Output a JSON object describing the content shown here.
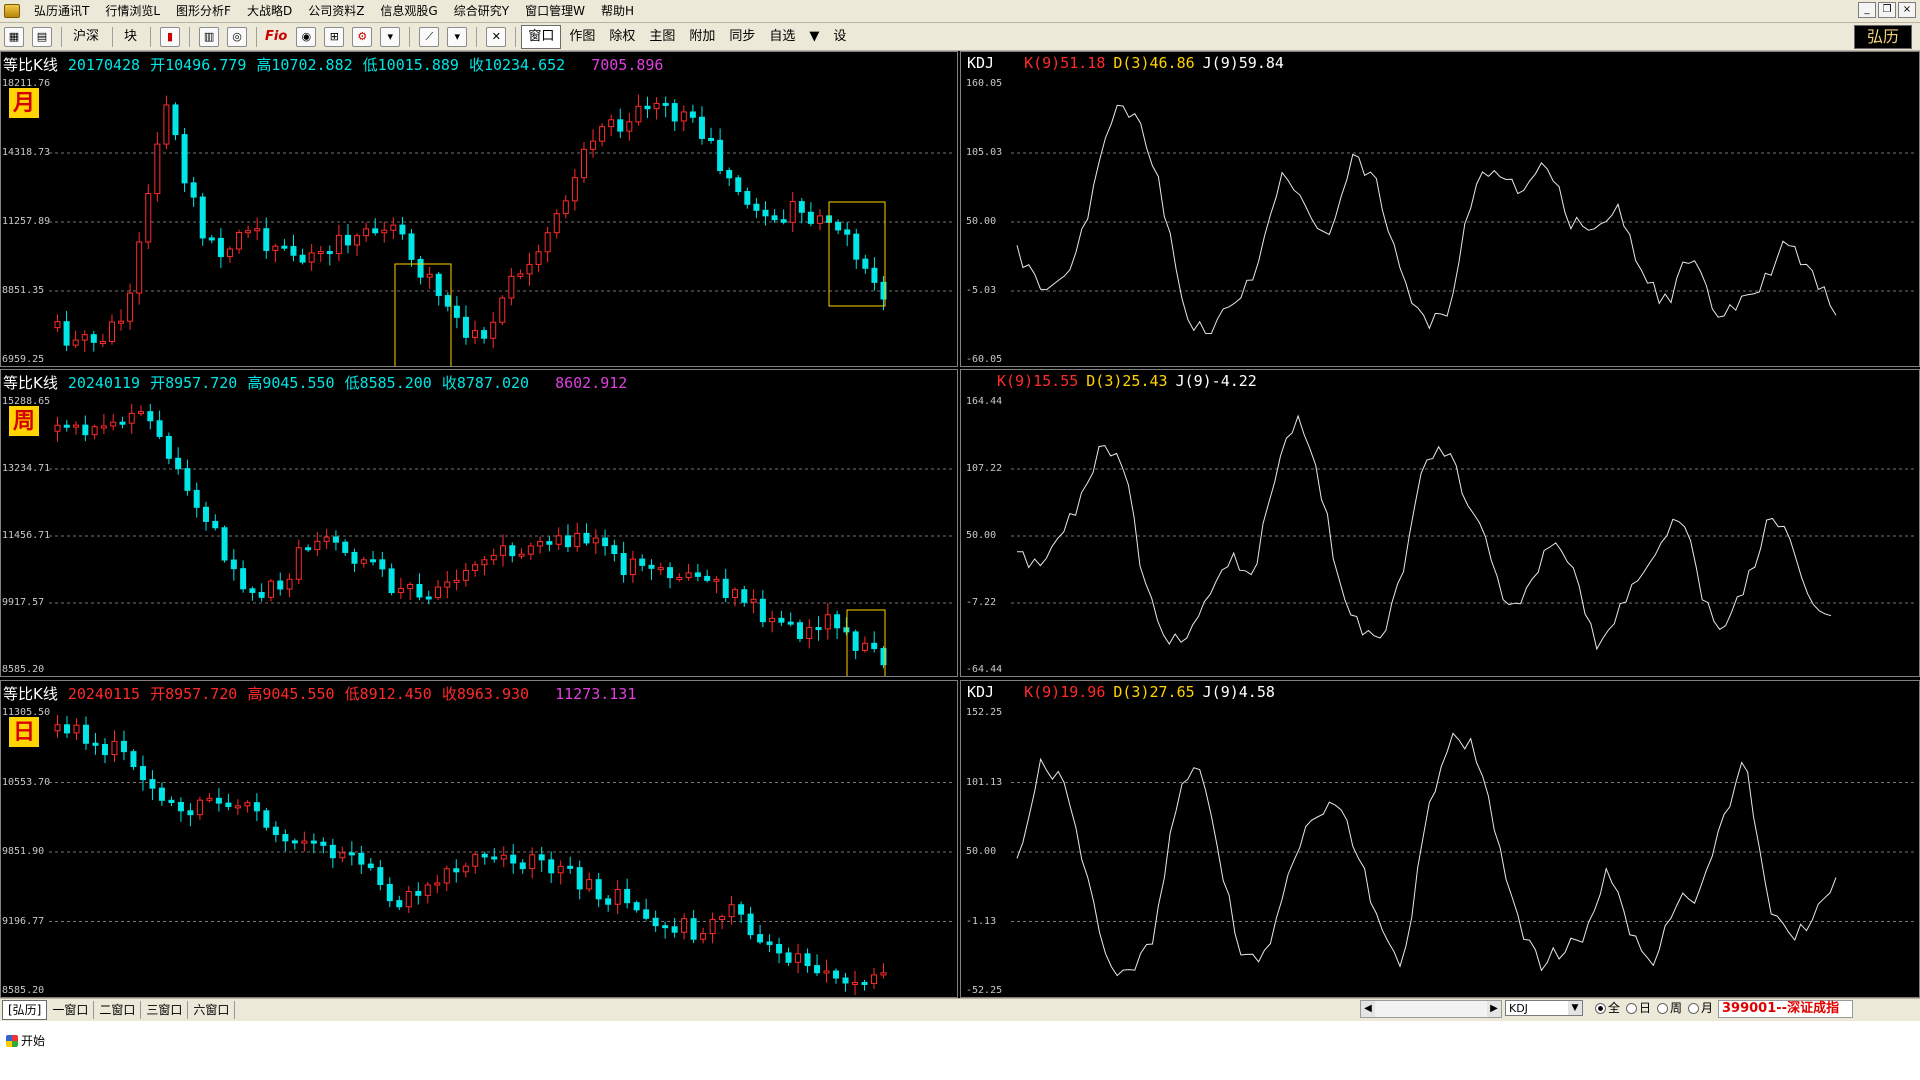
{
  "menu": {
    "items": [
      "弘历通讯T",
      "行情浏览L",
      "图形分析F",
      "大战略D",
      "公司资料Z",
      "信息观股G",
      "综合研究Y",
      "窗口管理W",
      "帮助H"
    ]
  },
  "toolbar": {
    "btn_hushen": "沪深",
    "btn_block": "块",
    "btn_window": "窗口",
    "btn_draw": "作图",
    "btn_exright": "除权",
    "btn_main": "主图",
    "btn_attach": "附加",
    "btn_sync": "同步",
    "btn_custom": "自选",
    "btn_settings": "设",
    "fio_label": "Fio",
    "logo": "弘历"
  },
  "colors": {
    "up": "#ff2a2a",
    "down": "#00e5e5",
    "box": "#ffd400"
  },
  "panels": [
    {
      "title": "等比K线",
      "date": "20170428",
      "open_label": "开10496.779",
      "high_label": "高10702.882",
      "low_label": "低10015.889",
      "close_label": "收10234.652",
      "extra": "7005.896",
      "period": "月",
      "title_color": "#00e5e5",
      "y_ticks": [
        "18211.76",
        "14318.73",
        "11257.89",
        "8851.35",
        "6959.25"
      ],
      "kdj": {
        "name": "KDJ",
        "k": "K(9)51.18",
        "d": "D(3)46.86",
        "j": "J(9)59.84",
        "y_ticks": [
          "160.05",
          "105.03",
          "50.00",
          "-5.03",
          "-60.05"
        ]
      }
    },
    {
      "title": "等比K线",
      "date": "20240119",
      "open_label": "开8957.720",
      "high_label": "高9045.550",
      "low_label": "低8585.200",
      "close_label": "收8787.020",
      "extra": "8602.912",
      "period": "周",
      "title_color": "#00e5e5",
      "y_ticks": [
        "15288.65",
        "13234.71",
        "11456.71",
        "9917.57",
        "8585.20"
      ],
      "kdj": {
        "name": "",
        "k": "K(9)15.55",
        "d": "D(3)25.43",
        "j": "J(9)-4.22",
        "y_ticks": [
          "164.44",
          "107.22",
          "50.00",
          "-7.22",
          "-64.44"
        ]
      }
    },
    {
      "title": "等比K线",
      "date": "20240115",
      "open_label": "开8957.720",
      "high_label": "高9045.550",
      "low_label": "低8912.450",
      "close_label": "收8963.930",
      "extra": "11273.131",
      "period": "日",
      "title_color": "#ff2a2a",
      "y_ticks": [
        "11305.50",
        "10553.70",
        "9851.90",
        "9196.77",
        "8585.20"
      ],
      "kdj": {
        "name": "KDJ",
        "k": "K(9)19.96",
        "d": "D(3)27.65",
        "j": "J(9)4.58",
        "y_ticks": [
          "152.25",
          "101.13",
          "50.00",
          "-1.13",
          "-52.25"
        ]
      }
    }
  ],
  "status": {
    "tabs": [
      "[弘历]",
      "一窗口",
      "二窗口",
      "三窗口",
      "六窗口"
    ],
    "indicator": "KDJ",
    "radios": [
      "全",
      "日",
      "周",
      "月"
    ],
    "security": "399001--深证成指"
  },
  "taskbar": {
    "start": "开始"
  }
}
